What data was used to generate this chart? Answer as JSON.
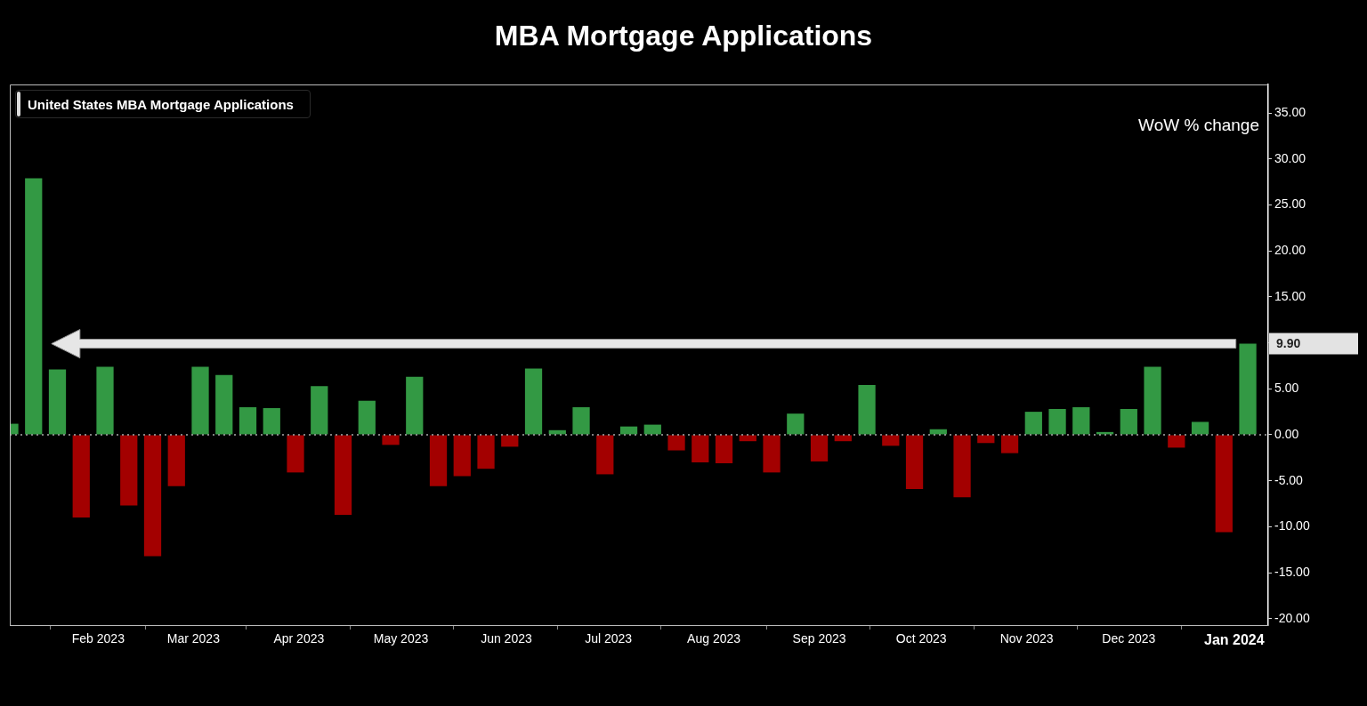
{
  "chart_data": {
    "type": "bar",
    "title": "MBA Mortgage Applications",
    "ylabel": "WoW % change",
    "x": [
      "2023-01-06",
      "2023-01-13",
      "2023-01-20",
      "2023-01-27",
      "2023-02-03",
      "2023-02-10",
      "2023-02-17",
      "2023-02-24",
      "2023-03-03",
      "2023-03-10",
      "2023-03-17",
      "2023-03-24",
      "2023-03-31",
      "2023-04-07",
      "2023-04-14",
      "2023-04-21",
      "2023-04-28",
      "2023-05-05",
      "2023-05-12",
      "2023-05-19",
      "2023-05-26",
      "2023-06-02",
      "2023-06-09",
      "2023-06-16",
      "2023-06-23",
      "2023-06-30",
      "2023-07-07",
      "2023-07-14",
      "2023-07-21",
      "2023-07-28",
      "2023-08-04",
      "2023-08-11",
      "2023-08-18",
      "2023-08-25",
      "2023-09-01",
      "2023-09-08",
      "2023-09-15",
      "2023-09-22",
      "2023-09-29",
      "2023-10-06",
      "2023-10-13",
      "2023-10-20",
      "2023-10-27",
      "2023-11-03",
      "2023-11-10",
      "2023-11-17",
      "2023-11-24",
      "2023-12-01",
      "2023-12-08",
      "2023-12-15",
      "2023-12-22",
      "2023-12-29",
      "2024-01-05"
    ],
    "series": [
      {
        "name": "United States MBA Mortgage Applications",
        "values": [
          1.2,
          27.9,
          7.1,
          -9.0,
          7.4,
          -7.7,
          -13.2,
          -5.6,
          7.4,
          6.5,
          3.0,
          2.9,
          -4.1,
          5.3,
          -8.7,
          3.7,
          -1.1,
          6.3,
          -5.6,
          -4.5,
          -3.7,
          -1.3,
          7.2,
          0.5,
          3.0,
          -4.3,
          0.9,
          1.1,
          -1.7,
          -3.0,
          -3.1,
          -0.7,
          -4.1,
          2.3,
          -2.9,
          -0.7,
          5.4,
          -1.2,
          -5.9,
          0.6,
          -6.8,
          -0.9,
          -2.0,
          2.5,
          2.8,
          3.0,
          0.3,
          2.8,
          7.4,
          -1.4,
          1.4,
          -10.6,
          9.9
        ],
        "colors": [
          "#339944",
          "#339944",
          "#339944",
          "#a30000",
          "#339944",
          "#a30000",
          "#a30000",
          "#a30000",
          "#339944",
          "#339944",
          "#339944",
          "#339944",
          "#a30000",
          "#339944",
          "#a30000",
          "#339944",
          "#a30000",
          "#339944",
          "#a30000",
          "#a30000",
          "#a30000",
          "#a30000",
          "#339944",
          "#339944",
          "#339944",
          "#a30000",
          "#339944",
          "#339944",
          "#a30000",
          "#a30000",
          "#a30000",
          "#a30000",
          "#a30000",
          "#339944",
          "#a30000",
          "#a30000",
          "#339944",
          "#a30000",
          "#a30000",
          "#339944",
          "#a30000",
          "#a30000",
          "#a30000",
          "#339944",
          "#339944",
          "#339944",
          "#339944",
          "#339944",
          "#339944",
          "#a30000",
          "#339944",
          "#a30000",
          "#339944"
        ]
      }
    ],
    "xlim": [
      "2023-01-06",
      "2024-01-11"
    ],
    "xticks": [
      {
        "value": "2023-02-01",
        "label": "Feb 2023"
      },
      {
        "value": "2023-03-01",
        "label": "Mar 2023"
      },
      {
        "value": "2023-04-01",
        "label": "Apr 2023"
      },
      {
        "value": "2023-05-01",
        "label": "May 2023"
      },
      {
        "value": "2023-06-01",
        "label": "Jun 2023"
      },
      {
        "value": "2023-07-01",
        "label": "Jul 2023"
      },
      {
        "value": "2023-08-01",
        "label": "Aug 2023"
      },
      {
        "value": "2023-09-01",
        "label": "Sep 2023"
      },
      {
        "value": "2023-10-01",
        "label": "Oct 2023"
      },
      {
        "value": "2023-11-01",
        "label": "Nov 2023"
      },
      {
        "value": "2023-12-01",
        "label": "Dec 2023"
      },
      {
        "value": "2024-01-01",
        "label": "Jan 2024"
      }
    ],
    "ylim": [
      -20.7,
      38.1
    ],
    "yticks": [
      {
        "value": -20,
        "label": "-20.00"
      },
      {
        "value": -15,
        "label": "-15.00"
      },
      {
        "value": -10,
        "label": "-10.00"
      },
      {
        "value": -5,
        "label": "-5.00"
      },
      {
        "value": 0,
        "label": "0.00"
      },
      {
        "value": 5,
        "label": "5.00"
      },
      {
        "value": 10,
        "label": null
      },
      {
        "value": 15,
        "label": "15.00"
      },
      {
        "value": 20,
        "label": "20.00"
      },
      {
        "value": 25,
        "label": "25.00"
      },
      {
        "value": 30,
        "label": "30.00"
      },
      {
        "value": 35,
        "label": "35.00"
      }
    ],
    "ref_lines": [
      {
        "axis": "y",
        "value": 0,
        "line_style": "dotted",
        "color": "#aaaaaa"
      }
    ],
    "annotations": [
      "9.90"
    ],
    "grid": false,
    "legend": "top left"
  }
}
